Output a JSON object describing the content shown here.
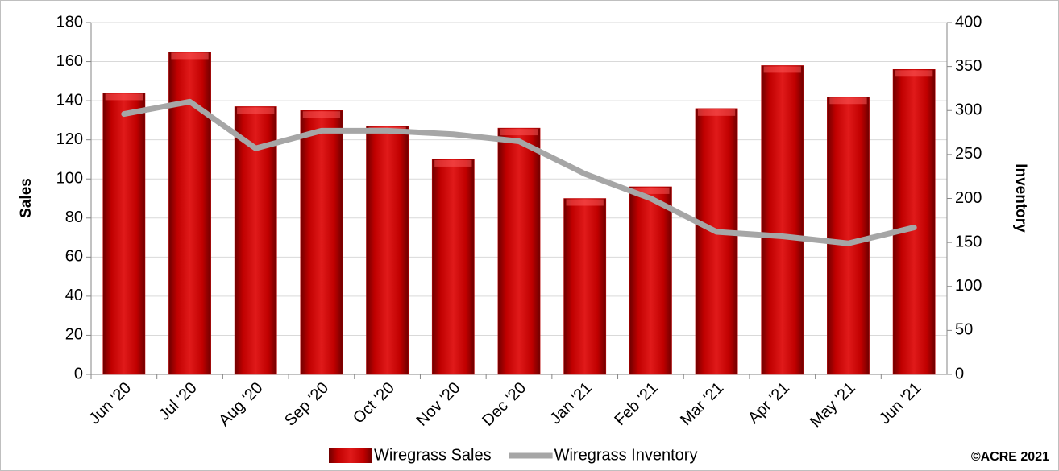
{
  "chart_data": {
    "type": "bar",
    "categories": [
      "Jun '20",
      "Jul '20",
      "Aug '20",
      "Sep '20",
      "Oct '20",
      "Nov '20",
      "Dec '20",
      "Jan '21",
      "Feb '21",
      "Mar '21",
      "Apr '21",
      "May '21",
      "Jun '21"
    ],
    "series": [
      {
        "name": "Wiregrass Sales",
        "type": "bar",
        "color": "#c00000",
        "values": [
          144,
          165,
          137,
          135,
          127,
          110,
          126,
          90,
          96,
          136,
          158,
          142,
          156
        ]
      },
      {
        "name": "Wiregrass Inventory",
        "type": "line",
        "axis": "y2",
        "color": "#a6a6a6",
        "values": [
          296,
          310,
          257,
          277,
          277,
          273,
          265,
          228,
          200,
          162,
          157,
          149,
          167
        ]
      }
    ],
    "ylabel": "Sales",
    "y2label": "Inventory",
    "ylim": [
      0,
      180
    ],
    "yticks": [
      0,
      20,
      40,
      60,
      80,
      100,
      120,
      140,
      160,
      180
    ],
    "y2lim": [
      0,
      400
    ],
    "y2ticks": [
      0,
      50,
      100,
      150,
      200,
      250,
      300,
      350,
      400
    ],
    "grid": true,
    "legend": "bottom",
    "annotation": "©ACRE 2021"
  }
}
